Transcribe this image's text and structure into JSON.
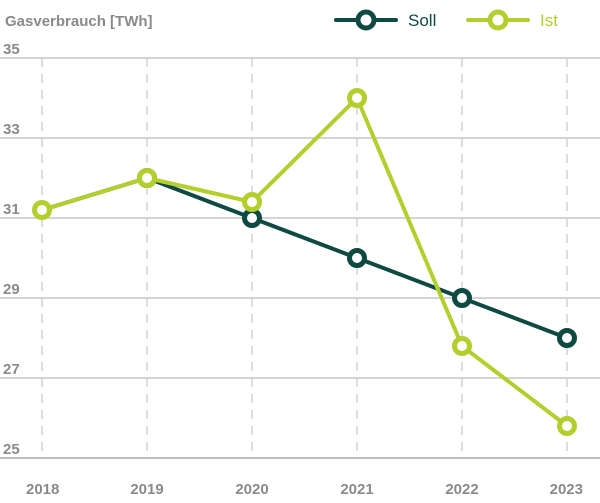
{
  "chart_data": {
    "type": "line",
    "title": "Gasverbrauch [TWh]",
    "ylabel": "Gasverbrauch [TWh]",
    "xlabel": "",
    "categories": [
      "2018",
      "2019",
      "2020",
      "2021",
      "2022",
      "2023"
    ],
    "ylim": [
      25,
      35
    ],
    "yticks": [
      25,
      27,
      29,
      31,
      33,
      35
    ],
    "grid": "dashed",
    "legend": "top-right",
    "series": [
      {
        "name": "Soll",
        "color": "#0f4a42",
        "values": [
          null,
          32.0,
          31.0,
          30.0,
          29.0,
          28.0
        ],
        "start_from_previous": [
          31.2
        ]
      },
      {
        "name": "Ist",
        "color": "#b3cf2e",
        "values": [
          31.2,
          32.0,
          31.4,
          34.0,
          27.8,
          25.8
        ]
      }
    ]
  },
  "colors": {
    "axis_text": "#8a8a8a",
    "grid": "#d4d4d4",
    "baseline": "#bdbdbd"
  }
}
